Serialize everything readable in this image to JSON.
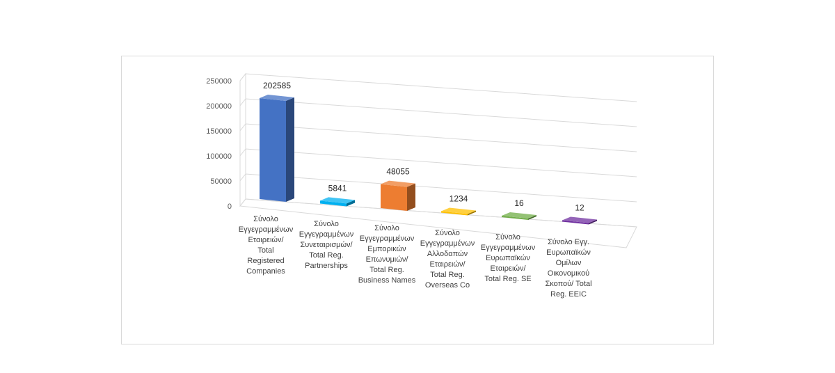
{
  "chart_data": {
    "type": "bar",
    "style": "3d-column",
    "title": "",
    "xlabel": "",
    "ylabel": "",
    "ylim": [
      0,
      250000
    ],
    "yticks": [
      0,
      50000,
      100000,
      150000,
      200000,
      250000
    ],
    "ytick_labels": [
      "0",
      "50000",
      "100000",
      "150000",
      "200000",
      "250000"
    ],
    "grid": true,
    "categories": [
      "Σύνολο Εγγεγραμμένων Εταιρειών/ Total Registered Companies",
      "Σύνολο Εγγεγραμμένων Συνεταιρισμών/ Total Reg. Partnerships",
      "Σύνολο Εγγεγραμμένων Εμπορικών Επωνυμιών/ Total Reg. Business Names",
      "Σύνολο Εγγεγραμμένων Αλλοδαπών Εταιρειών/ Total Reg. Overseas Co",
      "Σύνολο Εγγεγραμμένων Ευρωπαϊκών Εταιρειών/ Total Reg. SE",
      "Σύνολο Εγγ. Ευρωπαϊκών Ομίλων Οικονομικού Σκοπού/ Total Reg. EEIC"
    ],
    "category_label_lines": [
      [
        "Σύνολο",
        "Εγγεγραμμένων",
        "Εταιρειών/",
        "Total",
        "Registered",
        "Companies"
      ],
      [
        "Σύνολο",
        "Εγγεγραμμένων",
        "Συνεταιρισμών/",
        "Total Reg.",
        "Partnerships"
      ],
      [
        "Σύνολο",
        "Εγγεγραμμένων",
        "Εμπορικών",
        "Επωνυμιών/",
        "Total Reg.",
        "Business Names"
      ],
      [
        "Σύνολο",
        "Εγγεγραμμένων",
        "Αλλοδαπών",
        "Εταιρειών/",
        "Total Reg.",
        "Overseas Co"
      ],
      [
        "Σύνολο",
        "Εγγεγραμμένων",
        "Ευρωπαϊκών",
        "Εταιρειών/",
        "Total Reg. SE"
      ],
      [
        "Σύνολο Εγγ.",
        "Ευρωπαϊκών",
        "Ομίλων",
        "Οικονομικού",
        "Σκοπού/ Total",
        "Reg. EEIC"
      ]
    ],
    "values": [
      202585,
      5841,
      48055,
      1234,
      16,
      12
    ],
    "data_labels": [
      "202585",
      "5841",
      "48055",
      "1234",
      "16",
      "12"
    ],
    "colors": [
      "#4472C4",
      "#00B0F0",
      "#ED7D31",
      "#FFC000",
      "#70AD47",
      "#7030A0"
    ]
  }
}
